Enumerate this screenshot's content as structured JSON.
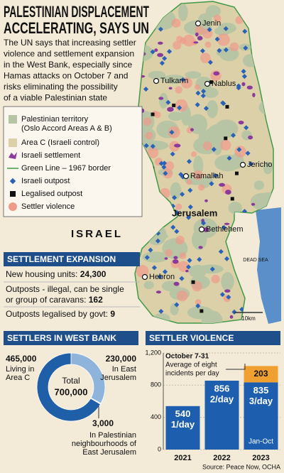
{
  "header": {
    "title": [
      "PALESTINIAN DISPLACEMENT",
      "ACCELERATING, SAYS UN"
    ],
    "intro": [
      "The UN says that increasing settler",
      "violence and settlement expansion",
      "in the West Bank, especially since",
      "Hamas attacks on October 7 and",
      "risks eliminating the possibility",
      "of a viable Palestinian state"
    ]
  },
  "map": {
    "legend": [
      {
        "label": "Palestinian territory",
        "sublabel": "(Oslo Accord Areas A & B)"
      },
      {
        "label": "Area C (Israeli control)"
      },
      {
        "label": "Israeli settlement"
      },
      {
        "label": "Green Line – 1967 border"
      },
      {
        "label": "Israeli outpost"
      },
      {
        "label": "Legalised outpost"
      },
      {
        "label": "Settler violence"
      }
    ],
    "places": [
      "Jenin",
      "Tulkarm",
      "Nablus",
      "Ramallah",
      "Jericho",
      "Jerusalem",
      "Bethlehem",
      "Hebron",
      "ISRAEL",
      "DEAD SEA"
    ],
    "scale": "10km"
  },
  "settlement_expansion": {
    "title": "SETTLEMENT EXPANSION",
    "items": [
      {
        "label": "New housing units: ",
        "value": "24,300"
      },
      {
        "label": "Outposts - illegal, can be single",
        "label2": "or group of caravans: ",
        "value": "162"
      },
      {
        "label": "Outposts legalised by govt: ",
        "value": "9"
      }
    ]
  },
  "chart_data": [
    {
      "type": "donut",
      "title": "SETTLERS IN WEST BANK",
      "center_text": [
        "Total",
        "700,000"
      ],
      "labels": [
        [
          "In East",
          "Jerusalem"
        ],
        [
          "In Palestinian",
          "neighbourhoods of",
          "East Jerusalem"
        ],
        [
          "Living in",
          "Area C"
        ]
      ],
      "values": [
        230000,
        3000,
        465000
      ],
      "value_labels": [
        "230,000",
        "3,000",
        "465,000"
      ],
      "colors": [
        "#8fb4dc",
        "#e8eef6",
        "#1f5fa8"
      ]
    },
    {
      "type": "stacked-bar",
      "title": "SETTLER VIOLENCE",
      "categories": [
        "2021",
        "2022",
        "2023"
      ],
      "series": [
        {
          "color": "#1d5fae",
          "values": [
            540,
            856,
            835
          ]
        },
        {
          "color": "#f0a030",
          "values": [
            null,
            null,
            203
          ]
        }
      ],
      "rate_labels": [
        "1/day",
        "2/day",
        "3/day"
      ],
      "annotation": [
        "October 7-31",
        "Average of eight",
        "incidents per day"
      ],
      "note": "Jan-Oct",
      "ylim": [
        0,
        1200
      ],
      "yticks": [
        0,
        400,
        800,
        {
          "value": 1200,
          "label": "1,200"
        }
      ],
      "grid": true
    }
  ],
  "source": "Source: Peace Now, OCHA"
}
